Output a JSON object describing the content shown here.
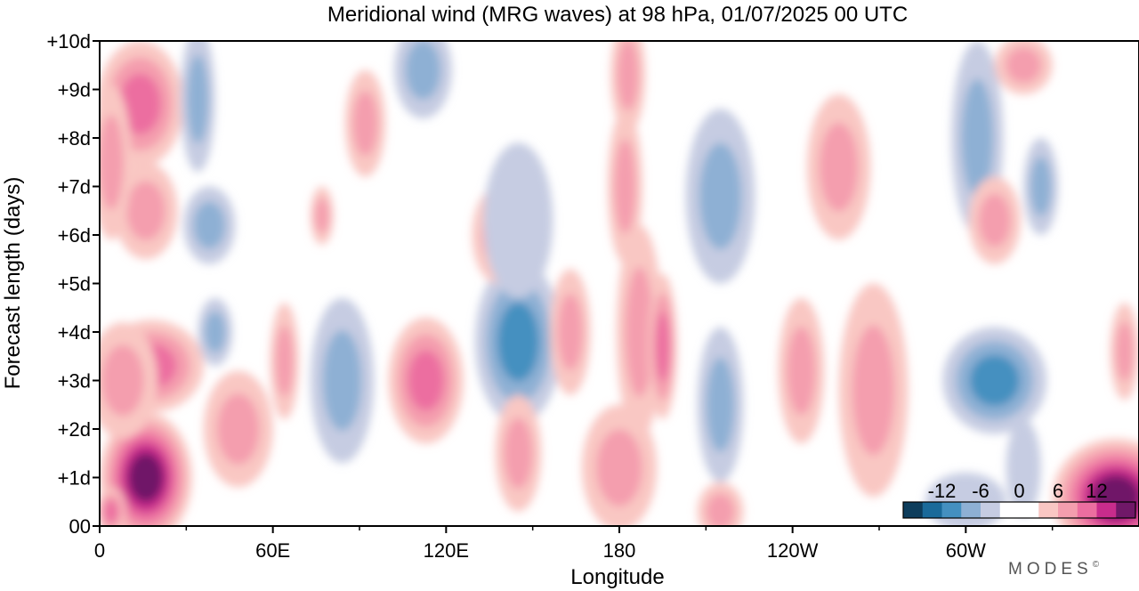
{
  "chart_data": {
    "type": "heatmap",
    "title": "Meridional wind (MRG waves) at  98 hPa,  01/07/2025  00 UTC",
    "xlabel": "Longitude",
    "ylabel": "Forecast length (days)",
    "x_ticks": [
      "0",
      "60E",
      "120E",
      "180",
      "120W",
      "60W"
    ],
    "x_tick_values": [
      0,
      60,
      120,
      180,
      240,
      300
    ],
    "y_ticks": [
      "00",
      "+1d",
      "+2d",
      "+3d",
      "+4d",
      "+5d",
      "+6d",
      "+7d",
      "+8d",
      "+9d",
      "+10d"
    ],
    "y_tick_values": [
      0,
      1,
      2,
      3,
      4,
      5,
      6,
      7,
      8,
      9,
      10
    ],
    "xlim": [
      0,
      360
    ],
    "ylim": [
      0,
      10
    ],
    "colorbar": {
      "labels": [
        "-12",
        "-6",
        "0",
        "6",
        "12"
      ],
      "label_values": [
        -12,
        -6,
        0,
        6,
        12
      ],
      "colors": [
        "#0d3d5c",
        "#1a6a9a",
        "#4490c0",
        "#8eb0d4",
        "#c6cce2",
        "#ffffff",
        "#ffffff",
        "#f9c7c3",
        "#f49eae",
        "#ec6ea0",
        "#c82c8c",
        "#701868"
      ]
    },
    "features": [
      {
        "lon": 16,
        "day": 1.0,
        "rx": 16,
        "ry": 1.35,
        "value": 13
      },
      {
        "lon": 18,
        "day": 3.3,
        "rx": 18,
        "ry": 0.95,
        "value": 8
      },
      {
        "lon": 8,
        "day": 3.0,
        "rx": 12,
        "ry": 1.2,
        "value": 6
      },
      {
        "lon": 14,
        "day": 8.7,
        "rx": 15,
        "ry": 1.3,
        "value": 7
      },
      {
        "lon": 16,
        "day": 6.5,
        "rx": 11,
        "ry": 1.0,
        "value": 6
      },
      {
        "lon": 4,
        "day": 7.5,
        "rx": 7,
        "ry": 1.6,
        "value": 4
      },
      {
        "lon": 4,
        "day": 0.3,
        "rx": 5,
        "ry": 0.5,
        "value": 8
      },
      {
        "lon": 48,
        "day": 2.0,
        "rx": 12,
        "ry": 1.2,
        "value": 6
      },
      {
        "lon": 38,
        "day": 6.2,
        "rx": 9,
        "ry": 0.8,
        "value": -6
      },
      {
        "lon": 34,
        "day": 8.8,
        "rx": 6,
        "ry": 1.5,
        "value": -4
      },
      {
        "lon": 40,
        "day": 4.0,
        "rx": 6,
        "ry": 0.7,
        "value": -4
      },
      {
        "lon": 64,
        "day": 3.4,
        "rx": 5,
        "ry": 1.2,
        "value": 6
      },
      {
        "lon": 84,
        "day": 3.0,
        "rx": 11,
        "ry": 1.7,
        "value": -6
      },
      {
        "lon": 92,
        "day": 8.3,
        "rx": 7,
        "ry": 1.1,
        "value": 4
      },
      {
        "lon": 77,
        "day": 6.4,
        "rx": 4,
        "ry": 0.6,
        "value": 4
      },
      {
        "lon": 113,
        "day": 3.0,
        "rx": 13,
        "ry": 1.3,
        "value": 7
      },
      {
        "lon": 112,
        "day": 9.4,
        "rx": 10,
        "ry": 1.0,
        "value": -4
      },
      {
        "lon": 145,
        "day": 3.8,
        "rx": 15,
        "ry": 1.7,
        "value": -8
      },
      {
        "lon": 138,
        "day": 6.0,
        "rx": 9,
        "ry": 1.0,
        "value": 6
      },
      {
        "lon": 145,
        "day": 6.3,
        "rx": 12,
        "ry": 1.6,
        "value": -3
      },
      {
        "lon": 145,
        "day": 1.5,
        "rx": 8,
        "ry": 1.2,
        "value": 4
      },
      {
        "lon": 163,
        "day": 4.0,
        "rx": 7,
        "ry": 1.3,
        "value": 5
      },
      {
        "lon": 180,
        "day": 1.2,
        "rx": 13,
        "ry": 1.3,
        "value": 4
      },
      {
        "lon": 187,
        "day": 4.0,
        "rx": 8,
        "ry": 2.2,
        "value": 4
      },
      {
        "lon": 182,
        "day": 7.0,
        "rx": 6,
        "ry": 1.6,
        "value": 5
      },
      {
        "lon": 195,
        "day": 3.7,
        "rx": 5,
        "ry": 1.5,
        "value": 7
      },
      {
        "lon": 183,
        "day": 9.3,
        "rx": 6,
        "ry": 1.2,
        "value": 4
      },
      {
        "lon": 215,
        "day": 6.8,
        "rx": 12,
        "ry": 1.8,
        "value": -6
      },
      {
        "lon": 215,
        "day": 2.5,
        "rx": 8,
        "ry": 1.6,
        "value": -6
      },
      {
        "lon": 243,
        "day": 3.2,
        "rx": 8,
        "ry": 1.5,
        "value": 5
      },
      {
        "lon": 256,
        "day": 7.4,
        "rx": 11,
        "ry": 1.5,
        "value": 6
      },
      {
        "lon": 268,
        "day": 2.8,
        "rx": 12,
        "ry": 2.2,
        "value": 4
      },
      {
        "lon": 304,
        "day": 8.0,
        "rx": 9,
        "ry": 2.0,
        "value": -6
      },
      {
        "lon": 310,
        "day": 3.0,
        "rx": 18,
        "ry": 1.1,
        "value": -7
      },
      {
        "lon": 310,
        "day": 6.3,
        "rx": 9,
        "ry": 0.9,
        "value": 5
      },
      {
        "lon": 326,
        "day": 7.0,
        "rx": 6,
        "ry": 1.0,
        "value": -6
      },
      {
        "lon": 320,
        "day": 9.5,
        "rx": 10,
        "ry": 0.6,
        "value": 4
      },
      {
        "lon": 352,
        "day": 0.6,
        "rx": 22,
        "ry": 1.2,
        "value": 14
      },
      {
        "lon": 300,
        "day": 0.5,
        "rx": 14,
        "ry": 0.6,
        "value": -3
      },
      {
        "lon": 215,
        "day": 0.3,
        "rx": 8,
        "ry": 0.6,
        "value": 4
      },
      {
        "lon": 320,
        "day": 1.2,
        "rx": 6,
        "ry": 1.0,
        "value": -3
      },
      {
        "lon": 355,
        "day": 3.6,
        "rx": 5,
        "ry": 1.0,
        "value": 4
      }
    ]
  },
  "branding": {
    "text": "MODES",
    "mark": "©"
  }
}
